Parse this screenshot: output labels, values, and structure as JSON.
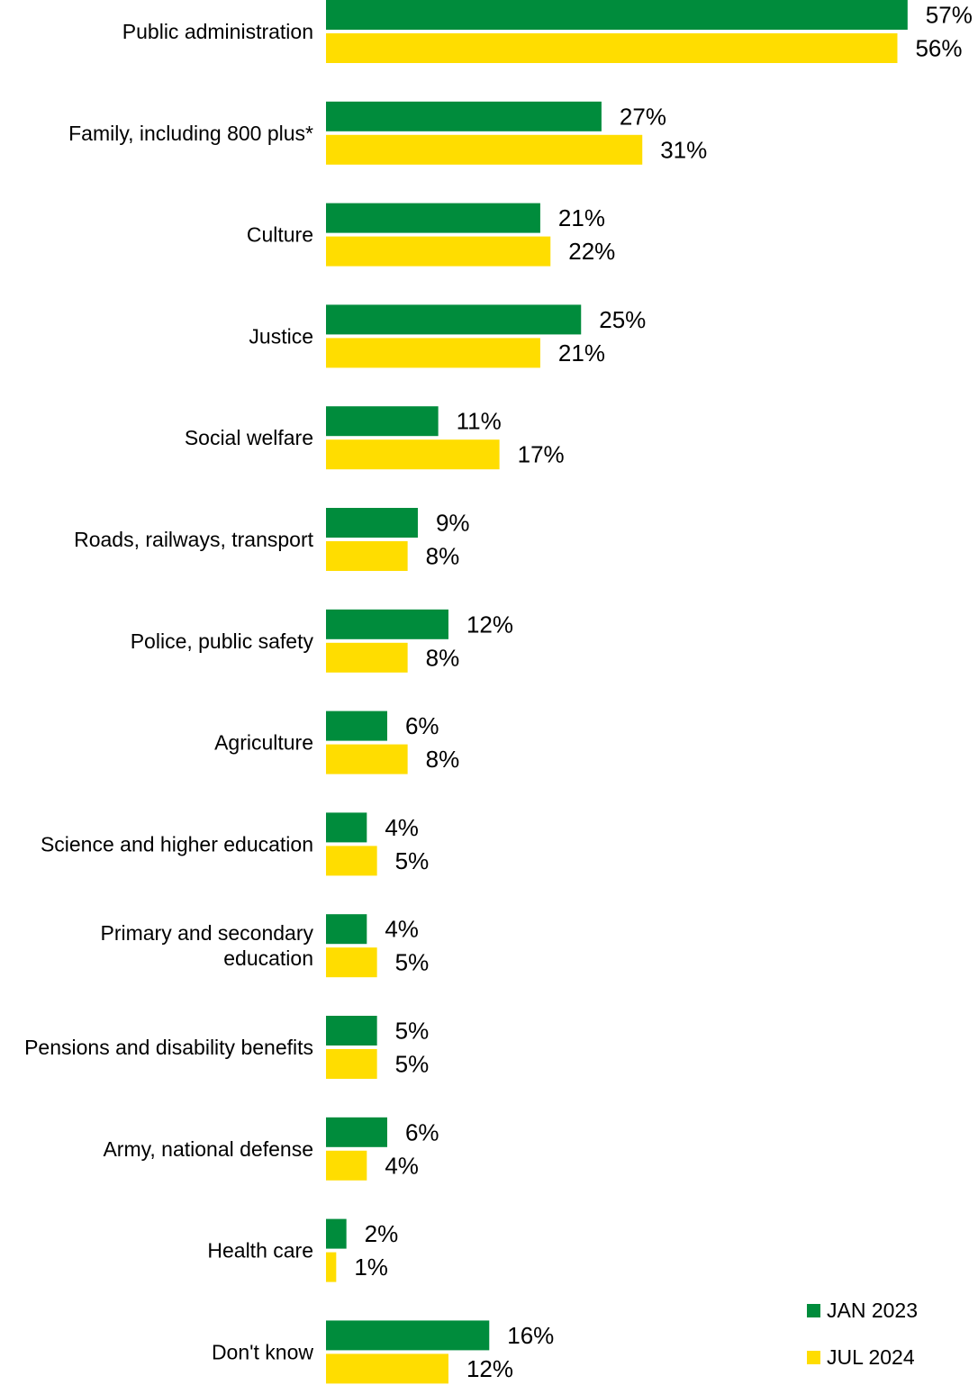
{
  "chart_data": {
    "type": "bar",
    "orientation": "horizontal",
    "categories": [
      "Public administration",
      "Family, including 800 plus*",
      "Culture",
      "Justice",
      "Social welfare",
      "Roads, railways, transport",
      "Police, public safety",
      "Agriculture",
      "Science and higher education",
      "Primary and secondary education",
      "Pensions and disability benefits",
      "Army, national defense",
      "Health care",
      "Don't know"
    ],
    "series": [
      {
        "name": "JAN 2023",
        "color": "#008C3C",
        "values": [
          57,
          27,
          21,
          25,
          11,
          9,
          12,
          6,
          4,
          4,
          5,
          6,
          2,
          16
        ],
        "labels": [
          "57%",
          "27%",
          "21%",
          "25%",
          "11%",
          "9%",
          "12%",
          "6%",
          "4%",
          "4%",
          "5%",
          "6%",
          "2%",
          "16%"
        ]
      },
      {
        "name": "JUL 2024",
        "color": "#FFDD00",
        "values": [
          56,
          31,
          22,
          21,
          17,
          8,
          8,
          8,
          5,
          5,
          5,
          4,
          1,
          12
        ],
        "labels": [
          "56%",
          "31%",
          "22%",
          "21%",
          "17%",
          "8%",
          "8%",
          "8%",
          "5%",
          "5%",
          "5%",
          "4%",
          "1%",
          "12%"
        ]
      }
    ],
    "unit": "%",
    "title": "",
    "xlabel": "",
    "ylabel": "",
    "grid": false,
    "legend_position": "bottom-right"
  }
}
